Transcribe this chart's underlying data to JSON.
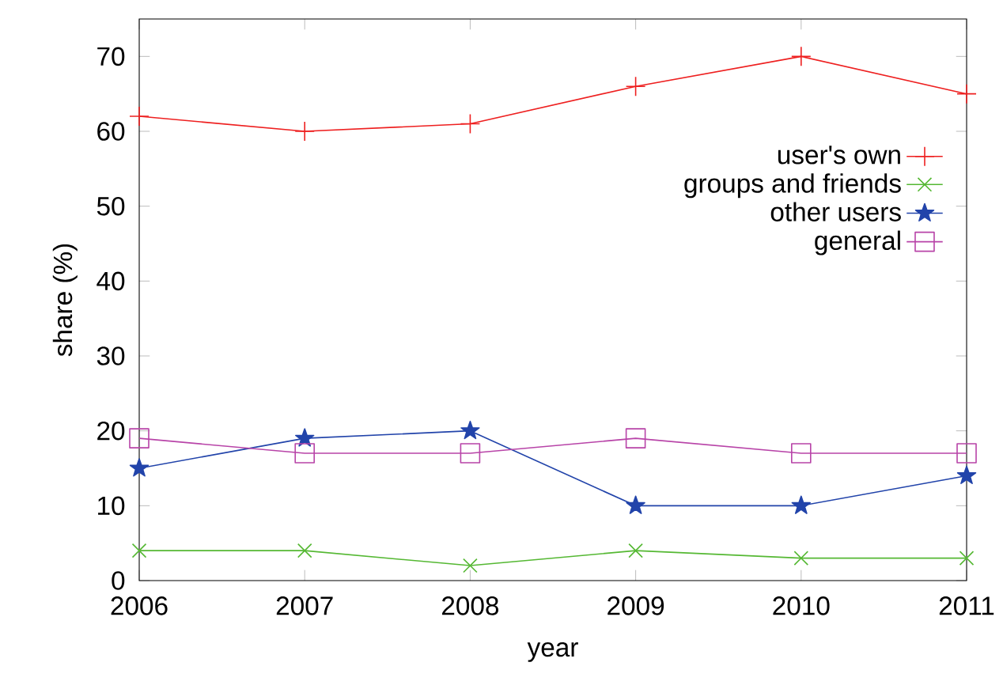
{
  "chart_data": {
    "type": "line",
    "xlabel": "year",
    "ylabel": "share (%)",
    "x": [
      2006,
      2007,
      2008,
      2009,
      2010,
      2011
    ],
    "series": [
      {
        "name": "user's own",
        "color": "#ee2020",
        "marker": "plus",
        "values": [
          62,
          60,
          61,
          66,
          70,
          65
        ]
      },
      {
        "name": "groups and friends",
        "color": "#55b833",
        "marker": "cross",
        "values": [
          4,
          4,
          2,
          4,
          3,
          3
        ]
      },
      {
        "name": "other users",
        "color": "#2244aa",
        "marker": "star",
        "values": [
          15,
          19,
          20,
          10,
          10,
          14
        ]
      },
      {
        "name": "general",
        "color": "#b844a8",
        "marker": "square",
        "values": [
          19,
          17,
          17,
          19,
          17,
          17
        ]
      }
    ],
    "xlim": [
      2006,
      2011
    ],
    "ylim": [
      0,
      75
    ],
    "xticks": [
      2006,
      2007,
      2008,
      2009,
      2010,
      2011
    ],
    "yticks": [
      0,
      10,
      20,
      30,
      40,
      50,
      60,
      70
    ],
    "grid": false,
    "legend": "top right",
    "line_style": "solid"
  }
}
